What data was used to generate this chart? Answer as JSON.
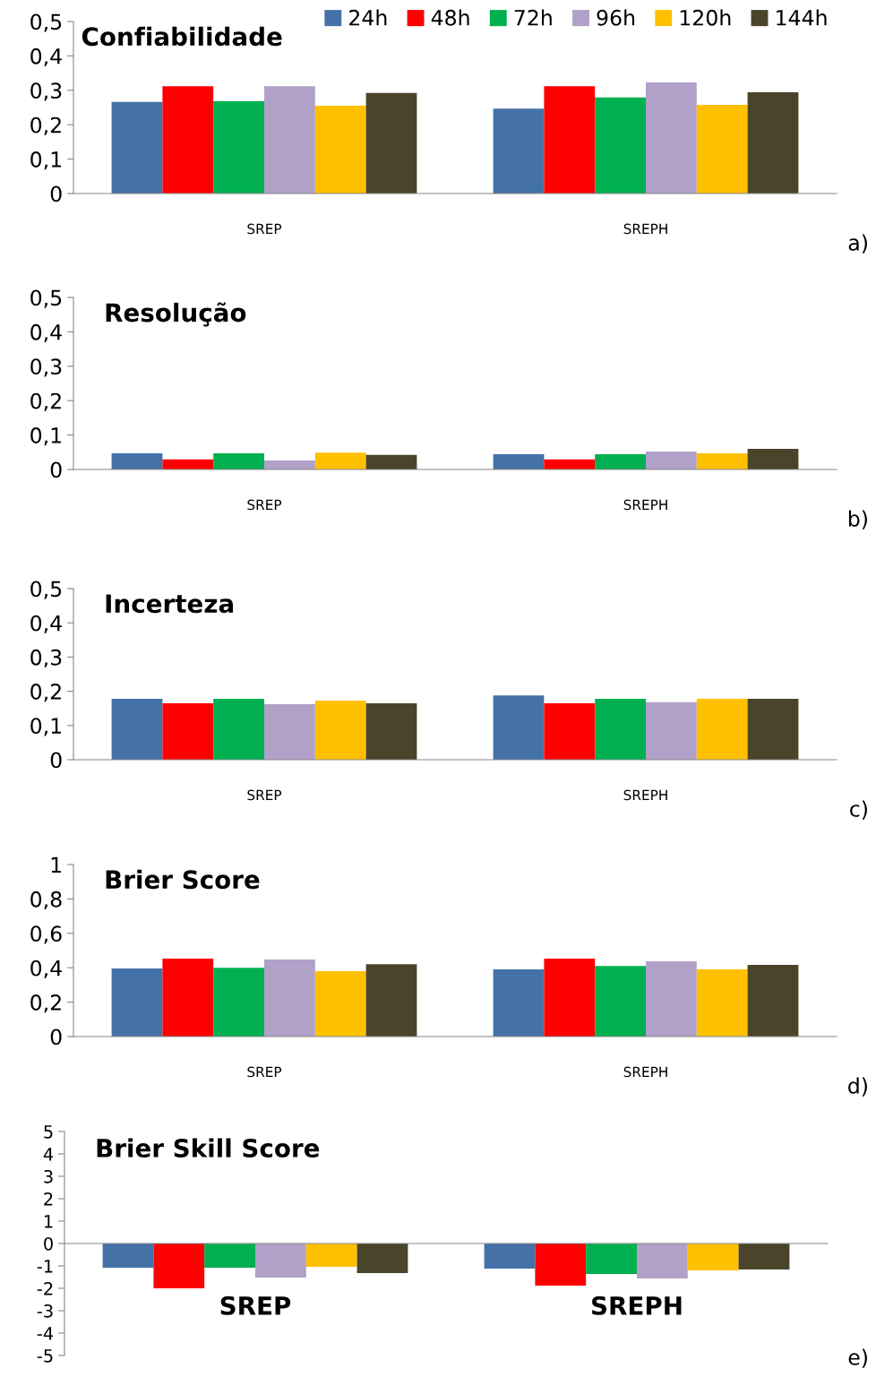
{
  "chart_data": [
    {
      "type": "bar",
      "title": "Confiabilidade",
      "categories": [
        "SREP",
        "SREPH"
      ],
      "legend": "top right",
      "grid": false,
      "ylim": [
        0,
        0.5
      ],
      "yticks": [
        0,
        {
          "value": 0.1,
          "label": "0,1"
        },
        {
          "value": 0.2,
          "label": "0,2"
        },
        {
          "value": 0.3,
          "label": "0,3"
        },
        {
          "value": 0.4,
          "label": "0,4"
        },
        {
          "value": 0.5,
          "label": "0,5"
        }
      ],
      "annotations": [
        "a)"
      ],
      "series": [
        {
          "name": "24h",
          "color": "#4472a8",
          "values": [
            0.266,
            0.247
          ]
        },
        {
          "name": "48h",
          "color": "#ff0000",
          "values": [
            0.312,
            0.312
          ]
        },
        {
          "name": "72h",
          "color": "#00b050",
          "values": [
            0.268,
            0.279
          ]
        },
        {
          "name": "96h",
          "color": "#b1a0c7",
          "values": [
            0.312,
            0.323
          ]
        },
        {
          "name": "120h",
          "color": "#ffc000",
          "values": [
            0.255,
            0.258
          ]
        },
        {
          "name": "144h",
          "color": "#4a452a",
          "values": [
            0.292,
            0.294
          ]
        }
      ]
    },
    {
      "type": "bar",
      "title": "Resolução",
      "categories": [
        "SREP",
        "SREPH"
      ],
      "grid": false,
      "ylim": [
        0,
        0.5
      ],
      "yticks": [
        0,
        {
          "value": 0.1,
          "label": "0,1"
        },
        {
          "value": 0.2,
          "label": "0,2"
        },
        {
          "value": 0.3,
          "label": "0,3"
        },
        {
          "value": 0.4,
          "label": "0,4"
        },
        {
          "value": 0.5,
          "label": "0,5"
        }
      ],
      "annotations": [
        "b)"
      ],
      "series": [
        {
          "color": "#4472a8",
          "values": [
            0.047,
            0.044
          ]
        },
        {
          "color": "#ff0000",
          "values": [
            0.029,
            0.029
          ]
        },
        {
          "color": "#00b050",
          "values": [
            0.047,
            0.044
          ]
        },
        {
          "color": "#b1a0c7",
          "values": [
            0.026,
            0.052
          ]
        },
        {
          "color": "#ffc000",
          "values": [
            0.049,
            0.047
          ]
        },
        {
          "color": "#4a452a",
          "values": [
            0.042,
            0.06
          ]
        }
      ]
    },
    {
      "type": "bar",
      "title": "Incerteza",
      "categories": [
        "SREP",
        "SREPH"
      ],
      "grid": false,
      "ylim": [
        0,
        0.5
      ],
      "yticks": [
        0,
        {
          "value": 0.1,
          "label": "0,1"
        },
        {
          "value": 0.2,
          "label": "0,2"
        },
        {
          "value": 0.3,
          "label": "0,3"
        },
        {
          "value": 0.4,
          "label": "0,4"
        },
        {
          "value": 0.5,
          "label": "0,5"
        }
      ],
      "annotations": [
        "c)"
      ],
      "series": [
        {
          "color": "#4472a8",
          "values": [
            0.178,
            0.188
          ]
        },
        {
          "color": "#ff0000",
          "values": [
            0.165,
            0.165
          ]
        },
        {
          "color": "#00b050",
          "values": [
            0.178,
            0.178
          ]
        },
        {
          "color": "#b1a0c7",
          "values": [
            0.162,
            0.168
          ]
        },
        {
          "color": "#ffc000",
          "values": [
            0.173,
            0.178
          ]
        },
        {
          "color": "#4a452a",
          "values": [
            0.165,
            0.178
          ]
        }
      ]
    },
    {
      "type": "bar",
      "title": "Brier Score",
      "categories": [
        "SREP",
        "SREPH"
      ],
      "grid": false,
      "ylim": [
        0,
        1
      ],
      "yticks": [
        0,
        {
          "value": 0.2,
          "label": "0,2"
        },
        {
          "value": 0.4,
          "label": "0,4"
        },
        {
          "value": 0.6,
          "label": "0,6"
        },
        {
          "value": 0.8,
          "label": "0,8"
        },
        1
      ],
      "annotations": [
        "d)"
      ],
      "series": [
        {
          "color": "#4472a8",
          "values": [
            0.396,
            0.39
          ]
        },
        {
          "color": "#ff0000",
          "values": [
            0.453,
            0.453
          ]
        },
        {
          "color": "#00b050",
          "values": [
            0.4,
            0.41
          ]
        },
        {
          "color": "#b1a0c7",
          "values": [
            0.448,
            0.437
          ]
        },
        {
          "color": "#ffc000",
          "values": [
            0.38,
            0.39
          ]
        },
        {
          "color": "#4a452a",
          "values": [
            0.42,
            0.417
          ]
        }
      ]
    },
    {
      "type": "bar",
      "title": "Brier Skill Score",
      "categories": [
        "SREP",
        "SREPH"
      ],
      "grid": false,
      "ylim": [
        -5,
        5
      ],
      "yticks": [
        -5,
        -4,
        -3,
        -2,
        -1,
        0,
        1,
        2,
        3,
        4,
        5
      ],
      "annotations": [
        "e)"
      ],
      "series": [
        {
          "color": "#4472a8",
          "values": [
            -1.08,
            -1.12
          ]
        },
        {
          "color": "#ff0000",
          "values": [
            -2.0,
            -1.88
          ]
        },
        {
          "color": "#00b050",
          "values": [
            -1.08,
            -1.36
          ]
        },
        {
          "color": "#b1a0c7",
          "values": [
            -1.52,
            -1.56
          ]
        },
        {
          "color": "#ffc000",
          "values": [
            -1.04,
            -1.2
          ]
        },
        {
          "color": "#4a452a",
          "values": [
            -1.32,
            -1.16
          ]
        }
      ]
    }
  ]
}
